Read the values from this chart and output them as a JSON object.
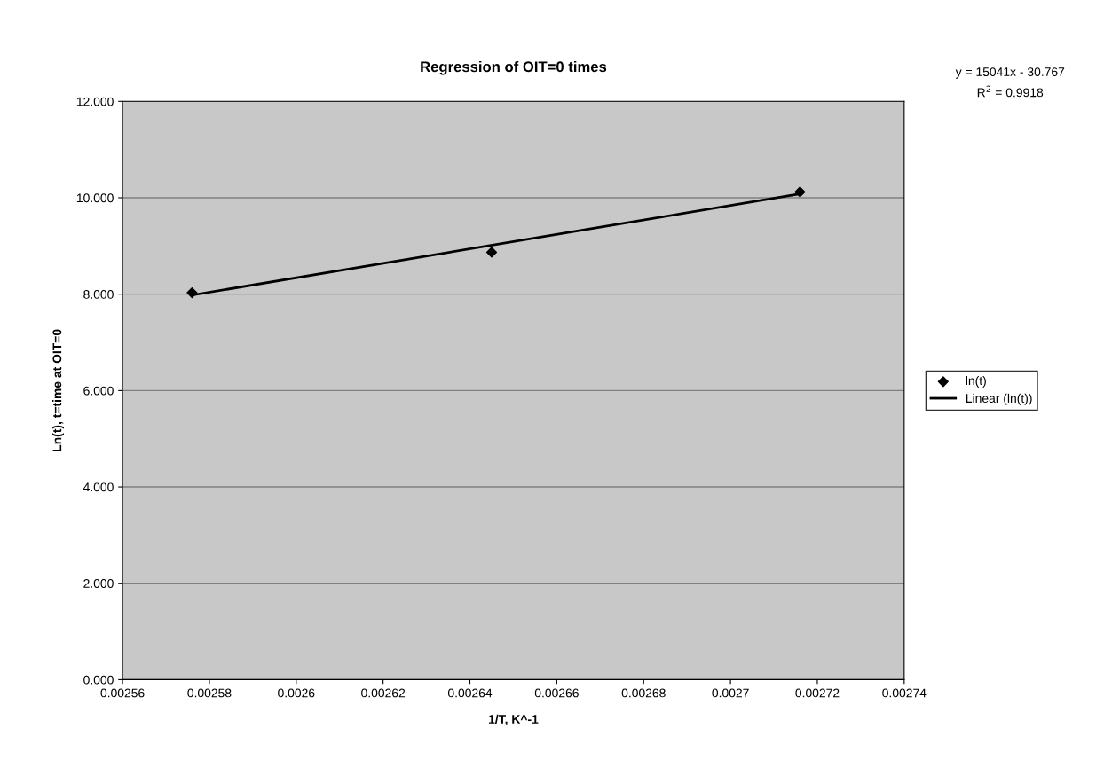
{
  "chart_data": {
    "type": "scatter",
    "title": "Regression of OIT=0 times",
    "xlabel": "1/T, K^-1",
    "ylabel": "Ln(t), t=time at OIT=0",
    "x": [
      0.002576,
      0.002645,
      0.002716
    ],
    "series": [
      {
        "name": "ln(t)",
        "color": "#000000",
        "marker": "diamond",
        "values": [
          8.03,
          8.87,
          10.12
        ]
      },
      {
        "name": "Linear (ln(t))",
        "type": "line",
        "color": "#000000",
        "marker": "none",
        "line_style": "solid",
        "x": [
          0.002576,
          0.002716
        ],
        "values": [
          7.98,
          10.08
        ]
      }
    ],
    "xlim": [
      0.00256,
      0.00274
    ],
    "xticks": [
      0.00256,
      0.00258,
      0.0026,
      0.00262,
      0.00264,
      0.00266,
      0.00268,
      0.0027,
      0.00272,
      0.00274
    ],
    "ylim": [
      0,
      12
    ],
    "yticks": [
      {
        "value": 0,
        "label": "0.000"
      },
      {
        "value": 2,
        "label": "2.000"
      },
      {
        "value": 4,
        "label": "4.000"
      },
      {
        "value": 6,
        "label": "6.000"
      },
      {
        "value": 8,
        "label": "8.000"
      },
      {
        "value": 10,
        "label": "10.000"
      },
      {
        "value": 12,
        "label": "12.000"
      }
    ],
    "annotations": [
      "y = 15041x - 30.767",
      "R$^{2}$ = 0.9918"
    ],
    "grid": "y",
    "legend": "right"
  }
}
